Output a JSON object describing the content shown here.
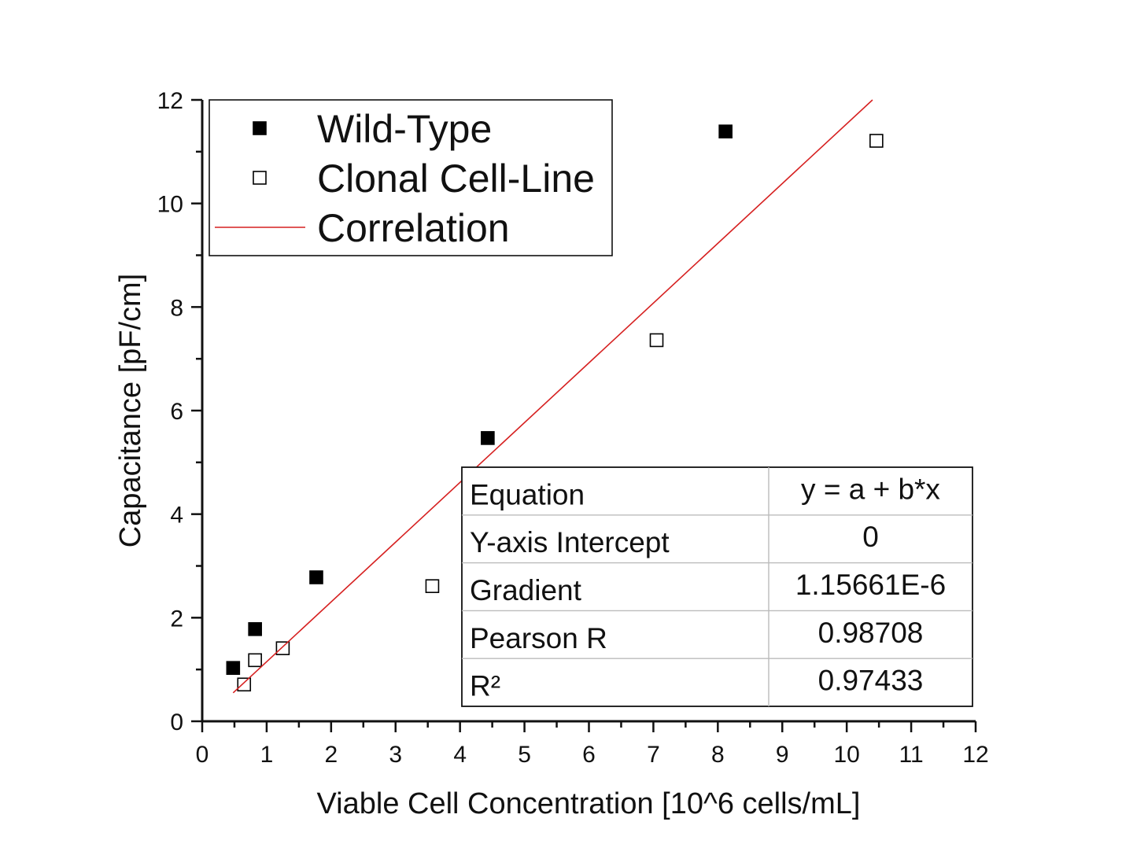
{
  "chart_data": {
    "type": "scatter",
    "xlabel": "Viable Cell Concentration [10^6 cells/mL]",
    "ylabel": "Capacitance [pF/cm]",
    "xlim": [
      0,
      12
    ],
    "ylim": [
      0,
      12
    ],
    "x_ticks": [
      "0",
      "1",
      "2",
      "3",
      "4",
      "5",
      "6",
      "7",
      "8",
      "9",
      "10",
      "11",
      "12"
    ],
    "y_ticks": [
      "0",
      "2",
      "4",
      "6",
      "8",
      "10",
      "12"
    ],
    "grid": false,
    "legend_position": "top-left",
    "series": [
      {
        "name": "Wild-Type",
        "marker": "filled-square",
        "color": "#000000",
        "points": [
          {
            "x": 0.48,
            "y": 1.03
          },
          {
            "x": 0.82,
            "y": 1.78
          },
          {
            "x": 1.77,
            "y": 2.78
          },
          {
            "x": 4.43,
            "y": 5.47
          },
          {
            "x": 8.12,
            "y": 11.39
          }
        ]
      },
      {
        "name": "Clonal Cell-Line",
        "marker": "open-square",
        "color": "#000000",
        "points": [
          {
            "x": 0.65,
            "y": 0.71
          },
          {
            "x": 0.82,
            "y": 1.18
          },
          {
            "x": 1.25,
            "y": 1.41
          },
          {
            "x": 3.57,
            "y": 2.61
          },
          {
            "x": 7.05,
            "y": 7.36
          },
          {
            "x": 10.46,
            "y": 11.21
          }
        ]
      },
      {
        "name": "Correlation",
        "type": "line",
        "color": "#d62020",
        "points": [
          {
            "x": 0.48,
            "y": 0.55
          },
          {
            "x": 10.4,
            "y": 12.0
          }
        ]
      }
    ],
    "fit_table": [
      {
        "label": "Equation",
        "value": "y = a + b*x"
      },
      {
        "label": "Y-axis Intercept",
        "value": "0"
      },
      {
        "label": "Gradient",
        "value": "1.15661E-6"
      },
      {
        "label": "Pearson R",
        "value": "0.98708"
      },
      {
        "label": "R²",
        "value": "0.97433"
      }
    ]
  }
}
